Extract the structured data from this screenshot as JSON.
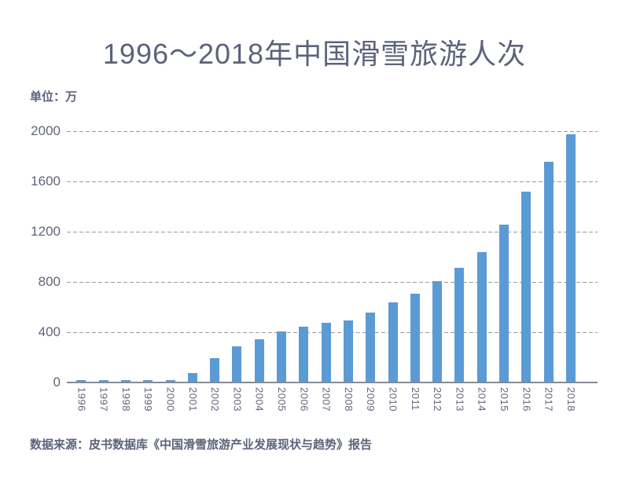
{
  "page": {
    "title": "1996～2018年中国滑雪旅游人次",
    "unit_label": "单位：万",
    "source": "数据来源：皮书数据库《中国滑雪旅游产业发展现状与趋势》报告"
  },
  "chart_data": {
    "type": "bar",
    "title": "1996～2018年中国滑雪旅游人次",
    "ylabel": "单位：万",
    "xlabel": "",
    "categories": [
      "1996",
      "1997",
      "1998",
      "1999",
      "2000",
      "2001",
      "2002",
      "2003",
      "2004",
      "2005",
      "2006",
      "2007",
      "2008",
      "2009",
      "2010",
      "2011",
      "2012",
      "2013",
      "2014",
      "2015",
      "2016",
      "2017",
      "2018"
    ],
    "values": [
      15,
      15,
      15,
      15,
      15,
      70,
      185,
      280,
      340,
      400,
      435,
      470,
      490,
      550,
      630,
      700,
      800,
      905,
      1030,
      1250,
      1510,
      1750,
      1970
    ],
    "ylim": [
      0,
      2000
    ],
    "yticks": [
      0,
      400,
      800,
      1200,
      1600,
      2000
    ],
    "grid": "horizontal-dashed",
    "legend": "none",
    "x_label_rotation": 90
  },
  "colors": {
    "bar": "#5B9BD5",
    "title_text": "#5C637A",
    "axis_text": "#5F6679",
    "gridline": "#9B9B9B",
    "axis_line": "#858B95",
    "background": "#FFFFFF"
  }
}
